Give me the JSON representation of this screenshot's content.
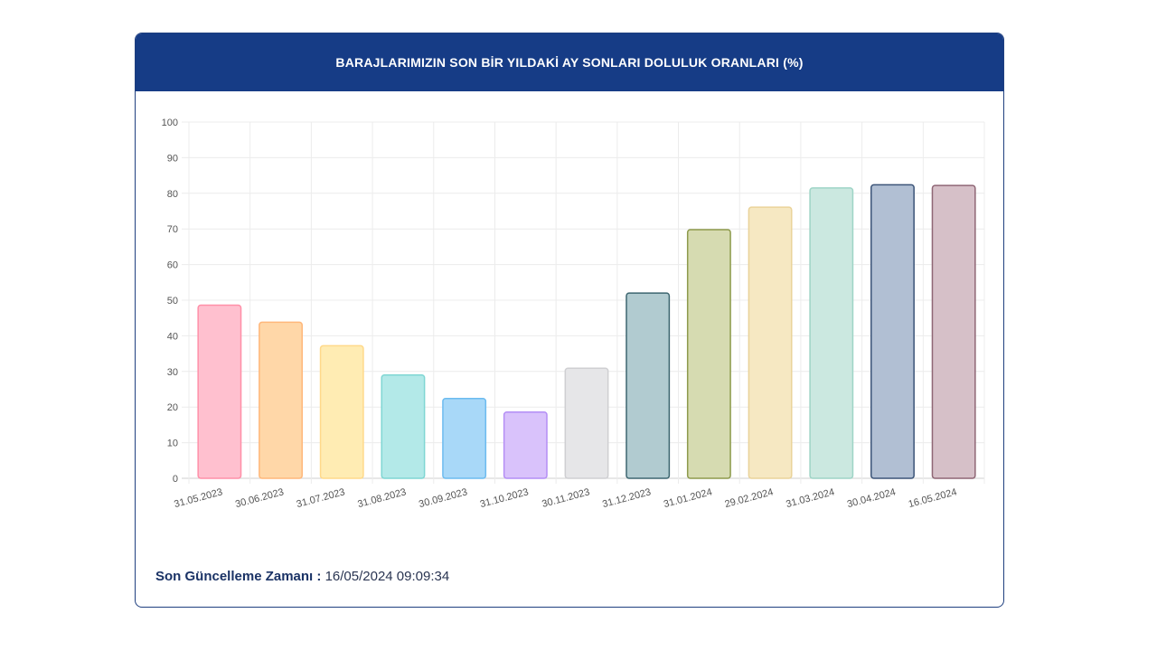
{
  "card": {
    "title": "BARAJLARIMIZIN SON BİR YILDAKİ AY SONLARI DOLULUK ORANLARI (%)"
  },
  "footer": {
    "label": "Son Güncelleme Zamanı :",
    "value": "16/05/2024 09:09:34"
  },
  "chart_data": {
    "type": "bar",
    "categories": [
      "31.05.2023",
      "30.06.2023",
      "31.07.2023",
      "31.08.2023",
      "30.09.2023",
      "31.10.2023",
      "30.11.2023",
      "31.12.2023",
      "31.01.2024",
      "29.02.2024",
      "31.03.2024",
      "30.04.2024",
      "16.05.2024"
    ],
    "values": [
      48.6,
      43.8,
      37.2,
      29.0,
      22.4,
      18.6,
      30.9,
      52.0,
      69.8,
      76.1,
      81.5,
      82.4,
      82.2
    ],
    "ylim": [
      0,
      100
    ],
    "yticks": [
      0,
      10,
      20,
      30,
      40,
      50,
      60,
      70,
      80,
      90,
      100
    ],
    "grid": true,
    "legend": "none",
    "fill_colors": [
      "#ffc0cf",
      "#ffd7a8",
      "#ffecb3",
      "#b3e9e8",
      "#a8d8f8",
      "#d9c2fb",
      "#e6e6e8",
      "#b1cbd0",
      "#d6dbb1",
      "#f6e8c2",
      "#cbe8e0",
      "#b1bfd3",
      "#d6c0c8"
    ],
    "border_colors": [
      "#ff8fa8",
      "#ffb77a",
      "#ffd98a",
      "#7fd6d3",
      "#6cbbef",
      "#b48ef5",
      "#cfcfd2",
      "#3d6670",
      "#8d9a4c",
      "#ead39a",
      "#9ed4c6",
      "#3b5478",
      "#8f6675"
    ]
  }
}
